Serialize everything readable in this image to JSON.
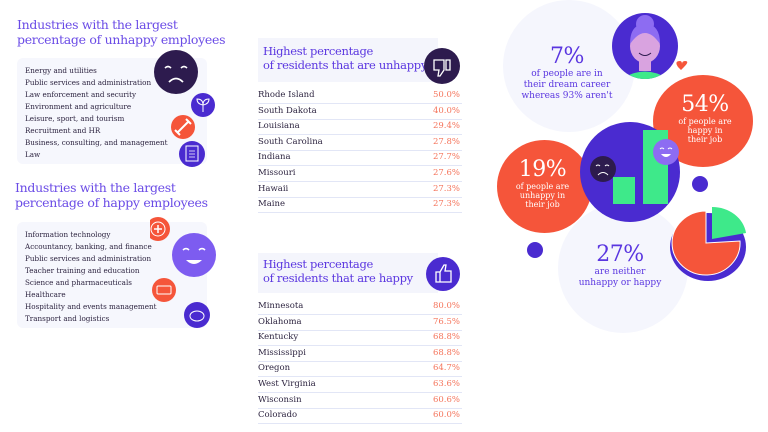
{
  "colors": {
    "purple": "#4a2bd0",
    "light_purple": "#7d5cf0",
    "orange": "#f5553a",
    "dark": "#2d1b4e",
    "green": "#3ee98a",
    "title": "#6a4be6",
    "value": "#f5755c"
  },
  "unhappy_industries": {
    "title_line1": "Industries with the largest",
    "title_line2": "percentage of unhappy employees",
    "items": [
      "Energy and utilities",
      "Public services and administration",
      "Law enforcement and security",
      "Environment and agriculture",
      "Leisure, sport, and tourism",
      "Recruitment and HR",
      "Business, consulting, and management",
      "Law"
    ]
  },
  "happy_industries": {
    "title_line1": "Industries with the largest",
    "title_line2": "percentage of happy employees",
    "items": [
      "Information technology",
      "Accountancy, banking, and finance",
      "Public services and administration",
      "Teacher training and education",
      "Science and pharmaceuticals",
      "Healthcare",
      "Hospitality and events management",
      "Transport and logistics"
    ]
  },
  "unhappy_states": {
    "title_line1": "Highest percentage",
    "title_line2": "of residents that are unhappy",
    "rows": [
      {
        "state": "Rhode Island",
        "value": "50.0%"
      },
      {
        "state": "South Dakota",
        "value": "40.0%"
      },
      {
        "state": "Louisiana",
        "value": "29.4%"
      },
      {
        "state": "South Carolina",
        "value": "27.8%"
      },
      {
        "state": "Indiana",
        "value": "27.7%"
      },
      {
        "state": "Missouri",
        "value": "27.6%"
      },
      {
        "state": "Hawaii",
        "value": "27.3%"
      },
      {
        "state": "Maine",
        "value": "27.3%"
      }
    ]
  },
  "happy_states": {
    "title_line1": "Highest percentage",
    "title_line2": "of residents that are happy",
    "rows": [
      {
        "state": "Minnesota",
        "value": "80.0%"
      },
      {
        "state": "Oklahoma",
        "value": "76.5%"
      },
      {
        "state": "Kentucky",
        "value": "68.8%"
      },
      {
        "state": "Mississippi",
        "value": "68.8%"
      },
      {
        "state": "Oregon",
        "value": "64.7%"
      },
      {
        "state": "West Virginia",
        "value": "63.6%"
      },
      {
        "state": "Wisconsin",
        "value": "60.6%"
      },
      {
        "state": "Colorado",
        "value": "60.0%"
      }
    ]
  },
  "stats": {
    "dream": {
      "pct": "7%",
      "l1": "of people are in",
      "l2": "their dream career",
      "l3": "whereas 93% aren't"
    },
    "happy": {
      "pct": "54%",
      "l1": "of people are",
      "l2": "happy in",
      "l3": "their job"
    },
    "unhappy": {
      "pct": "19%",
      "l1": "of people are",
      "l2": "unhappy in",
      "l3": "their job"
    },
    "neither": {
      "pct": "27%",
      "l1": "are neither",
      "l2": "unhappy or happy"
    }
  }
}
